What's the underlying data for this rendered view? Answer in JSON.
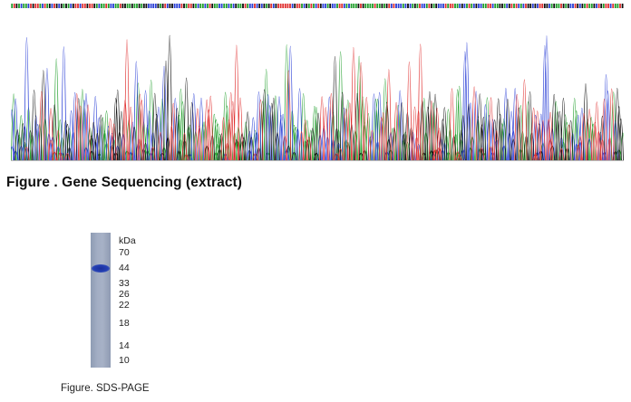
{
  "gene_sequencing": {
    "figure_caption": "Figure . Gene Sequencing (extract)",
    "base_colors": {
      "A": "#1f9e2a",
      "C": "#2a3fd6",
      "G": "#111111",
      "T": "#e03030"
    }
  },
  "sds_page": {
    "figure_caption": "Figure. SDS-PAGE",
    "unit_label": "kDa",
    "markers": [
      "70",
      "44",
      "33",
      "26",
      "22",
      "18",
      "14",
      "10"
    ],
    "band_color": "#2440b4"
  }
}
